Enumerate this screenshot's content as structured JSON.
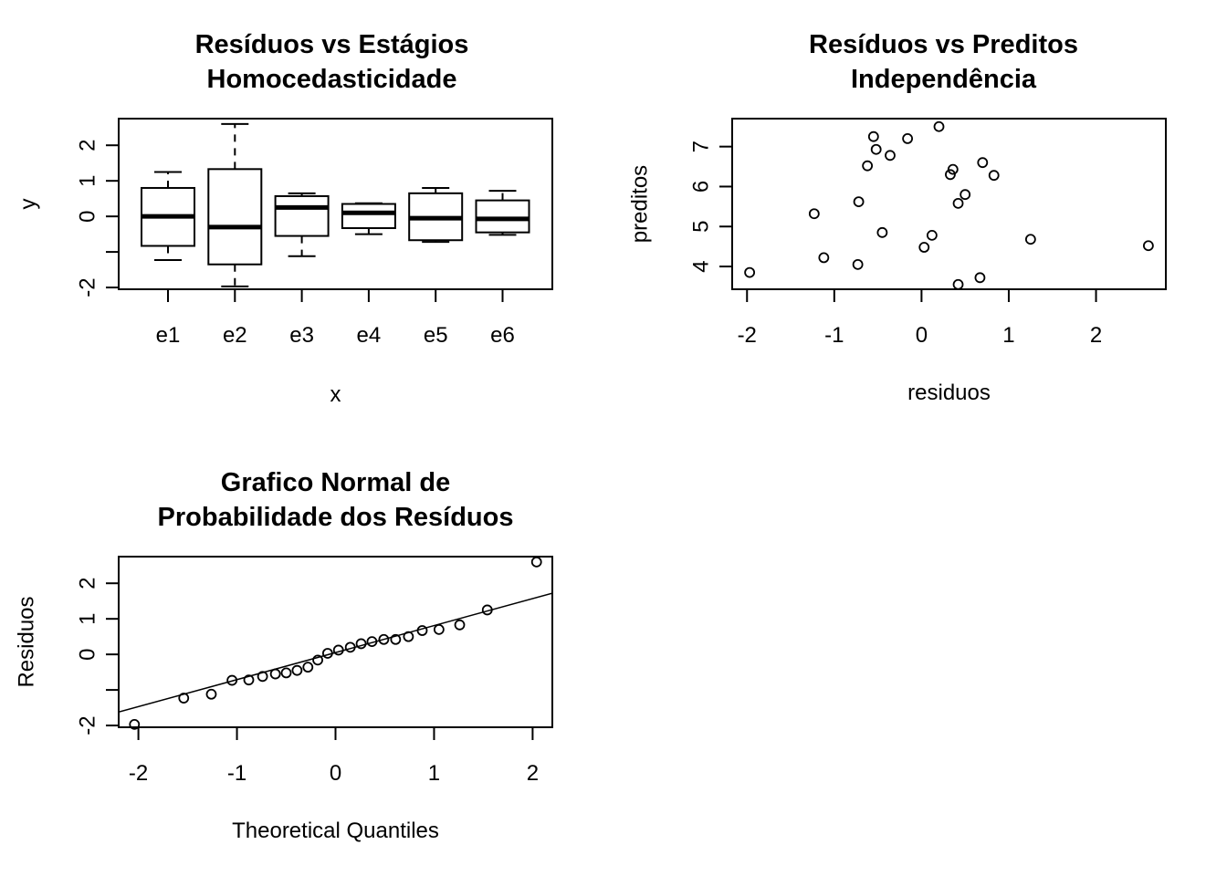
{
  "chart_data": [
    {
      "type": "box",
      "title": [
        "Resíduos vs Estágios",
        "Homocedasticidade"
      ],
      "xlabel": "x",
      "ylabel": "y",
      "ylim": [
        -2.05,
        2.75
      ],
      "yticks": [
        -2,
        -1,
        0,
        1,
        2
      ],
      "ytick_labels": [
        "-2",
        "",
        "0",
        "1",
        "2"
      ],
      "categories": [
        "e1",
        "e2",
        "e3",
        "e4",
        "e5",
        "e6"
      ],
      "boxes": [
        {
          "min": -1.23,
          "q1": -0.83,
          "median": 0.0,
          "q3": 0.8,
          "max": 1.25
        },
        {
          "min": -1.97,
          "q1": -1.35,
          "median": -0.3,
          "q3": 1.33,
          "max": 2.6
        },
        {
          "min": -1.12,
          "q1": -0.55,
          "median": 0.25,
          "q3": 0.57,
          "max": 0.65
        },
        {
          "min": -0.5,
          "q1": -0.33,
          "median": 0.1,
          "q3": 0.35,
          "max": 0.37
        },
        {
          "min": -0.72,
          "q1": -0.67,
          "median": -0.05,
          "q3": 0.65,
          "max": 0.8
        },
        {
          "min": -0.52,
          "q1": -0.45,
          "median": -0.07,
          "q3": 0.45,
          "max": 0.72
        }
      ]
    },
    {
      "type": "scatter",
      "title": [
        "Resíduos vs Preditos",
        "Independência"
      ],
      "xlabel": "residuos",
      "ylabel": "preditos",
      "xlim": [
        -2.17,
        2.8
      ],
      "ylim": [
        3.43,
        7.7
      ],
      "xticks": [
        -2,
        -1,
        0,
        1,
        2
      ],
      "yticks": [
        4,
        5,
        6,
        7
      ],
      "points": [
        [
          -1.97,
          3.85
        ],
        [
          -1.23,
          5.32
        ],
        [
          -1.12,
          4.22
        ],
        [
          -0.73,
          4.05
        ],
        [
          -0.72,
          5.62
        ],
        [
          -0.62,
          6.52
        ],
        [
          -0.55,
          7.25
        ],
        [
          -0.52,
          6.93
        ],
        [
          -0.45,
          4.85
        ],
        [
          -0.36,
          6.78
        ],
        [
          -0.16,
          7.2
        ],
        [
          0.03,
          4.48
        ],
        [
          0.12,
          4.78
        ],
        [
          0.2,
          7.5
        ],
        [
          0.33,
          6.3
        ],
        [
          0.36,
          6.43
        ],
        [
          0.42,
          5.58
        ],
        [
          0.42,
          3.55
        ],
        [
          0.5,
          5.8
        ],
        [
          0.67,
          3.72
        ],
        [
          0.7,
          6.6
        ],
        [
          0.83,
          6.28
        ],
        [
          1.25,
          4.68
        ],
        [
          2.6,
          4.52
        ]
      ]
    },
    {
      "type": "qq",
      "title": [
        "Grafico Normal de",
        "Probabilidade dos Resíduos"
      ],
      "xlabel": "Theoretical Quantiles",
      "ylabel": "Residuos",
      "xlim": [
        -2.2,
        2.2
      ],
      "ylim": [
        -2.05,
        2.75
      ],
      "xticks": [
        -2,
        -1,
        0,
        1,
        2
      ],
      "yticks": [
        -2,
        -1,
        0,
        1,
        2
      ],
      "ytick_labels": [
        "-2",
        "",
        "0",
        "1",
        "2"
      ],
      "points": [
        [
          -2.04,
          -1.97
        ],
        [
          -1.54,
          -1.23
        ],
        [
          -1.26,
          -1.12
        ],
        [
          -1.05,
          -0.73
        ],
        [
          -0.88,
          -0.72
        ],
        [
          -0.74,
          -0.62
        ],
        [
          -0.61,
          -0.55
        ],
        [
          -0.5,
          -0.52
        ],
        [
          -0.39,
          -0.45
        ],
        [
          -0.28,
          -0.36
        ],
        [
          -0.18,
          -0.16
        ],
        [
          -0.08,
          0.03
        ],
        [
          0.03,
          0.12
        ],
        [
          0.15,
          0.2
        ],
        [
          0.26,
          0.3
        ],
        [
          0.37,
          0.36
        ],
        [
          0.49,
          0.42
        ],
        [
          0.61,
          0.42
        ],
        [
          0.74,
          0.5
        ],
        [
          0.88,
          0.67
        ],
        [
          1.05,
          0.7
        ],
        [
          1.26,
          0.83
        ],
        [
          1.54,
          1.25
        ],
        [
          2.04,
          2.6
        ]
      ],
      "reference_line": {
        "slope": 0.76,
        "intercept": 0.05
      }
    }
  ]
}
